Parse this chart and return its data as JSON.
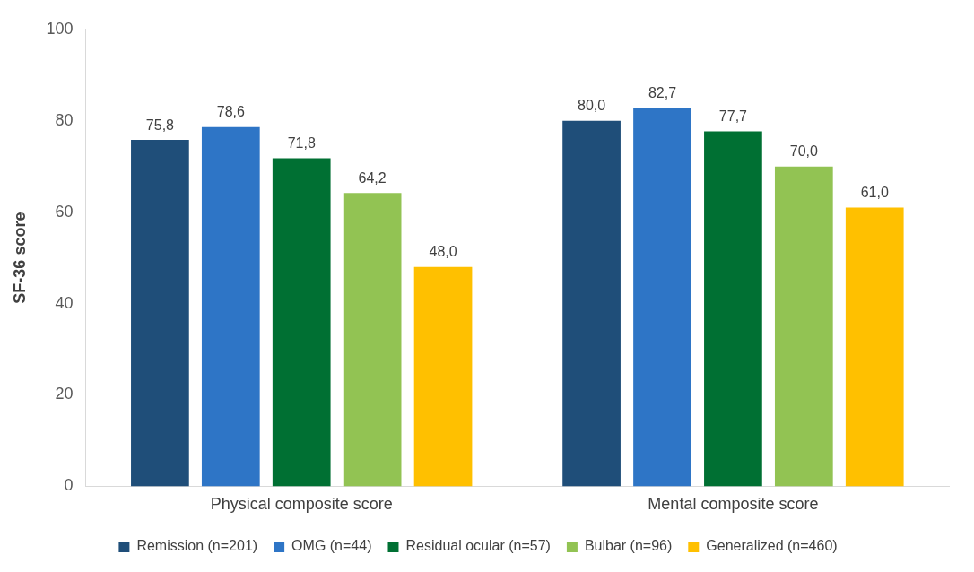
{
  "chart_data": {
    "type": "bar",
    "ylabel": "SF-36 score",
    "categories": [
      "Physical composite score",
      "Mental composite score"
    ],
    "series": [
      {
        "name": "Remission (n=201)",
        "color": "#1f4e79",
        "values": [
          75.8,
          80.0
        ],
        "value_labels": [
          "75,8",
          "80,0"
        ]
      },
      {
        "name": "OMG (n=44)",
        "color": "#2e75c6",
        "values": [
          78.6,
          82.7
        ],
        "value_labels": [
          "78,6",
          "82,7"
        ]
      },
      {
        "name": "Residual ocular (n=57)",
        "color": "#007033",
        "values": [
          71.8,
          77.7
        ],
        "value_labels": [
          "71,8",
          "77,7"
        ]
      },
      {
        "name": "Bulbar (n=96)",
        "color": "#92c353",
        "values": [
          64.2,
          70.0
        ],
        "value_labels": [
          "64,2",
          "70,0"
        ]
      },
      {
        "name": "Generalized (n=460)",
        "color": "#ffc000",
        "values": [
          48.0,
          61.0
        ],
        "value_labels": [
          "48,0",
          "61,0"
        ]
      }
    ],
    "ylim": [
      0,
      100
    ],
    "yticks": [
      0,
      20,
      40,
      60,
      80,
      100
    ],
    "grid": false,
    "legend": "bottom"
  }
}
